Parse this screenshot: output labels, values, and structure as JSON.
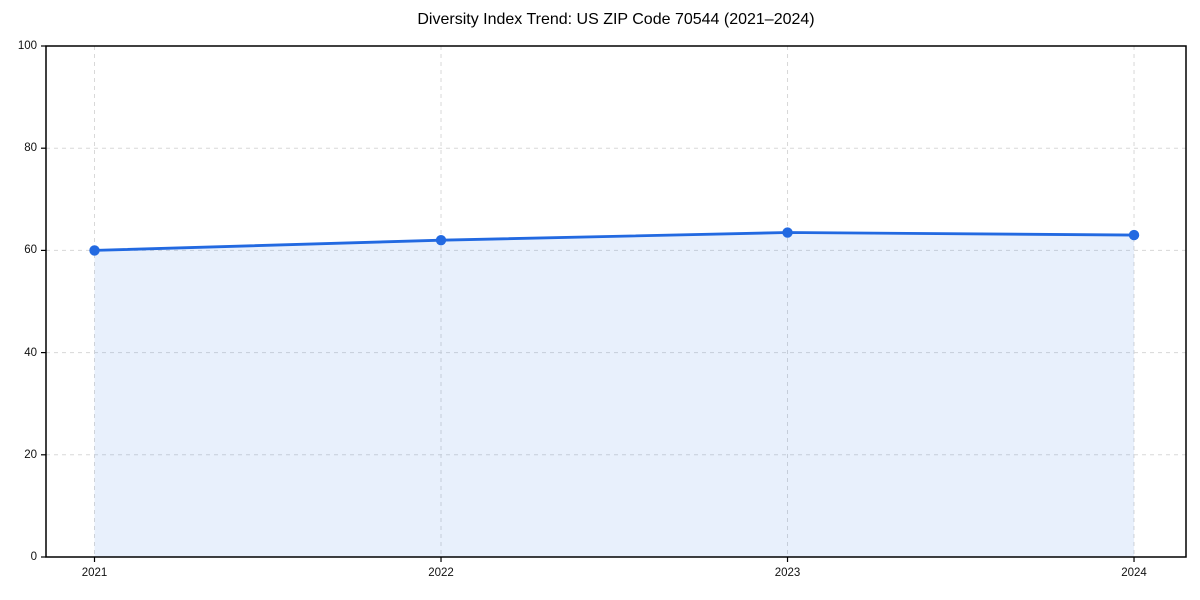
{
  "figure": {
    "background_color": "#ffffff"
  },
  "chart_data": {
    "type": "area",
    "title": "Diversity Index Trend: US ZIP Code 70544 (2021–2024)",
    "x": [
      2021,
      2022,
      2023,
      2024
    ],
    "values": [
      60,
      62,
      63.5,
      63
    ],
    "xlabel": "",
    "ylabel": "",
    "xlim": [
      2020.86,
      2024.15
    ],
    "ylim": [
      0,
      100
    ],
    "xticks": [
      2021,
      2022,
      2023,
      2024
    ],
    "yticks": [
      0,
      20,
      40,
      60,
      80,
      100
    ],
    "xtick_labels": [
      "2021",
      "2022",
      "2023",
      "2024"
    ],
    "ytick_labels": [
      "0",
      "20",
      "40",
      "60",
      "80",
      "100"
    ],
    "grid": true,
    "grid_style": "dashed",
    "legend": false,
    "marker": "circle",
    "colors": {
      "line": "#2269e1",
      "fill": "#2269e1",
      "fill_opacity": 0.1,
      "grid": "#d8d8d8",
      "axis": "#000000",
      "tick_text": "#111111",
      "title_text": "#000000"
    }
  }
}
